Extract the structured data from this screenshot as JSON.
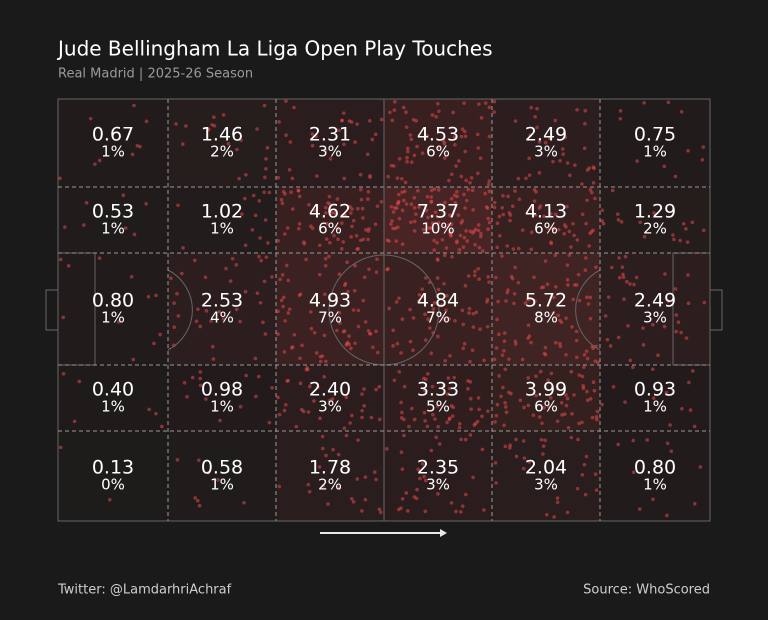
{
  "chart_data": {
    "type": "pitch-zones",
    "title": "Jude Bellingham La Liga Open Play Touches",
    "subtitle": "Real Madrid | 2025-26 Season",
    "values": [
      [
        0.67,
        1.46,
        2.31,
        4.53,
        2.49,
        0.75
      ],
      [
        0.53,
        1.02,
        4.62,
        7.37,
        4.13,
        1.29
      ],
      [
        0.8,
        2.53,
        4.93,
        4.84,
        5.72,
        2.49
      ],
      [
        0.4,
        0.98,
        2.4,
        3.33,
        3.99,
        0.93
      ],
      [
        0.13,
        0.58,
        1.78,
        2.35,
        2.04,
        0.8
      ]
    ],
    "value_labels": [
      [
        "0.67",
        "1.46",
        "2.31",
        "4.53",
        "2.49",
        "0.75"
      ],
      [
        "0.53",
        "1.02",
        "4.62",
        "7.37",
        "4.13",
        "1.29"
      ],
      [
        "0.80",
        "2.53",
        "4.93",
        "4.84",
        "5.72",
        "2.49"
      ],
      [
        "0.40",
        "0.98",
        "2.40",
        "3.33",
        "3.99",
        "0.93"
      ],
      [
        "0.13",
        "0.58",
        "1.78",
        "2.35",
        "2.04",
        "0.80"
      ]
    ],
    "shares": [
      [
        1,
        2,
        3,
        6,
        3,
        1
      ],
      [
        1,
        1,
        6,
        10,
        6,
        2
      ],
      [
        1,
        4,
        7,
        7,
        8,
        3
      ],
      [
        1,
        1,
        3,
        5,
        6,
        1
      ],
      [
        0,
        1,
        2,
        3,
        3,
        1
      ]
    ],
    "share_labels": [
      [
        "1%",
        "2%",
        "3%",
        "6%",
        "3%",
        "1%"
      ],
      [
        "1%",
        "1%",
        "6%",
        "10%",
        "6%",
        "2%"
      ],
      [
        "1%",
        "4%",
        "7%",
        "7%",
        "8%",
        "3%"
      ],
      [
        "1%",
        "1%",
        "3%",
        "5%",
        "6%",
        "1%"
      ],
      [
        "0%",
        "1%",
        "2%",
        "3%",
        "3%",
        "1%"
      ]
    ],
    "color": "#e0484a",
    "credit": "Twitter: @LamdarhriAchraf",
    "source": "Source: WhoScored"
  }
}
